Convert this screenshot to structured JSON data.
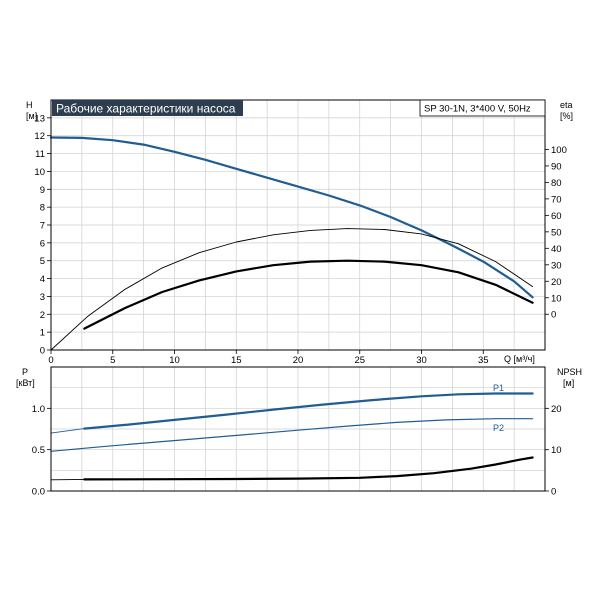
{
  "title_badge": "Рабочие характеристики насоса",
  "model_label": "SP 30-1N, 3*400 V, 50Hz",
  "colors": {
    "blue": "#1f5d94",
    "black": "#000000",
    "badge_bg": "#2d3e50",
    "grid": "#cfcfcf",
    "frame": "#000000"
  },
  "chart_data": [
    {
      "type": "line",
      "x_label": "Q [м³/ч]",
      "xlim": [
        0,
        40
      ],
      "x_ticks": [
        0,
        5,
        10,
        15,
        20,
        25,
        30,
        35
      ],
      "y_left": {
        "label_top": "H",
        "label_unit": "[м]",
        "ylim": [
          0,
          14
        ],
        "ticks": [
          0,
          1,
          2,
          3,
          4,
          5,
          6,
          7,
          8,
          9,
          10,
          11,
          12,
          13
        ]
      },
      "y_right": {
        "label_top": "eta",
        "label_unit": "[%]",
        "ylim": [
          -21.7,
          130
        ],
        "ticks": [
          0,
          10,
          20,
          30,
          40,
          50,
          60,
          70,
          80,
          90,
          100
        ]
      },
      "series": [
        {
          "name": "",
          "axis": "left",
          "color": "blue",
          "width": 2.2,
          "x": [
            0,
            2.5,
            5,
            7.5,
            10,
            12.5,
            15,
            17.5,
            20,
            22.5,
            25,
            27.5,
            30,
            32.5,
            35,
            37.5,
            39
          ],
          "y": [
            11.9,
            11.88,
            11.75,
            11.5,
            11.1,
            10.65,
            10.15,
            9.65,
            9.15,
            8.65,
            8.1,
            7.45,
            6.7,
            5.85,
            4.95,
            3.85,
            2.95
          ]
        },
        {
          "name": "",
          "axis": "left",
          "color": "black",
          "width": 0.9,
          "x": [
            0,
            3,
            6,
            9,
            12,
            15,
            18,
            21,
            24,
            27,
            30,
            33,
            36,
            39
          ],
          "y": [
            0,
            1.9,
            3.4,
            4.6,
            5.45,
            6.05,
            6.45,
            6.7,
            6.8,
            6.75,
            6.5,
            5.95,
            4.95,
            3.55
          ]
        },
        {
          "name": "",
          "axis": "left",
          "color": "black",
          "width": 2.2,
          "x": [
            2.7,
            6,
            9,
            12,
            15,
            18,
            21,
            24,
            27,
            30,
            33,
            36,
            39
          ],
          "y": [
            1.2,
            2.35,
            3.25,
            3.9,
            4.4,
            4.75,
            4.95,
            5.0,
            4.95,
            4.75,
            4.35,
            3.65,
            2.65
          ]
        }
      ]
    },
    {
      "type": "line",
      "xlim": [
        0,
        40
      ],
      "y_left": {
        "label_top": "P",
        "label_unit": "[кВт]",
        "ylim": [
          0,
          1.5
        ],
        "ticks": [
          0.0,
          0.5,
          1.0
        ],
        "tick_labels": [
          "0.0",
          "0.5",
          "1.0"
        ]
      },
      "y_right": {
        "label_top": "NPSH",
        "label_unit": "[м]",
        "ylim": [
          0,
          30
        ],
        "ticks": [
          0,
          10,
          20
        ]
      },
      "series": [
        {
          "name": "P1",
          "axis": "left",
          "color": "blue",
          "width": 2.2,
          "x": [
            2.7,
            6,
            10,
            14,
            18,
            22,
            26,
            30,
            33,
            36,
            39
          ],
          "y": [
            0.755,
            0.8,
            0.86,
            0.92,
            0.985,
            1.045,
            1.1,
            1.145,
            1.17,
            1.18,
            1.18
          ]
        },
        {
          "name": "",
          "axis": "left",
          "color": "blue",
          "width": 0.9,
          "x": [
            0,
            2.7
          ],
          "y": [
            0.7,
            0.755
          ]
        },
        {
          "name": "P2",
          "axis": "left",
          "color": "blue",
          "width": 1.2,
          "x": [
            0,
            4,
            8,
            12,
            16,
            20,
            24,
            28,
            32,
            36,
            39
          ],
          "y": [
            0.48,
            0.535,
            0.585,
            0.635,
            0.685,
            0.735,
            0.785,
            0.83,
            0.86,
            0.875,
            0.875
          ]
        },
        {
          "name": "",
          "axis": "right",
          "color": "black",
          "width": 2.2,
          "x": [
            2.7,
            10,
            15,
            20,
            25,
            28,
            31,
            34,
            36,
            38,
            39
          ],
          "y": [
            2.8,
            2.85,
            2.9,
            3.0,
            3.2,
            3.6,
            4.3,
            5.4,
            6.4,
            7.6,
            8.1
          ]
        },
        {
          "name": "",
          "axis": "right",
          "color": "black",
          "width": 0.9,
          "x": [
            0,
            2.7
          ],
          "y": [
            2.7,
            2.8
          ]
        }
      ]
    }
  ]
}
